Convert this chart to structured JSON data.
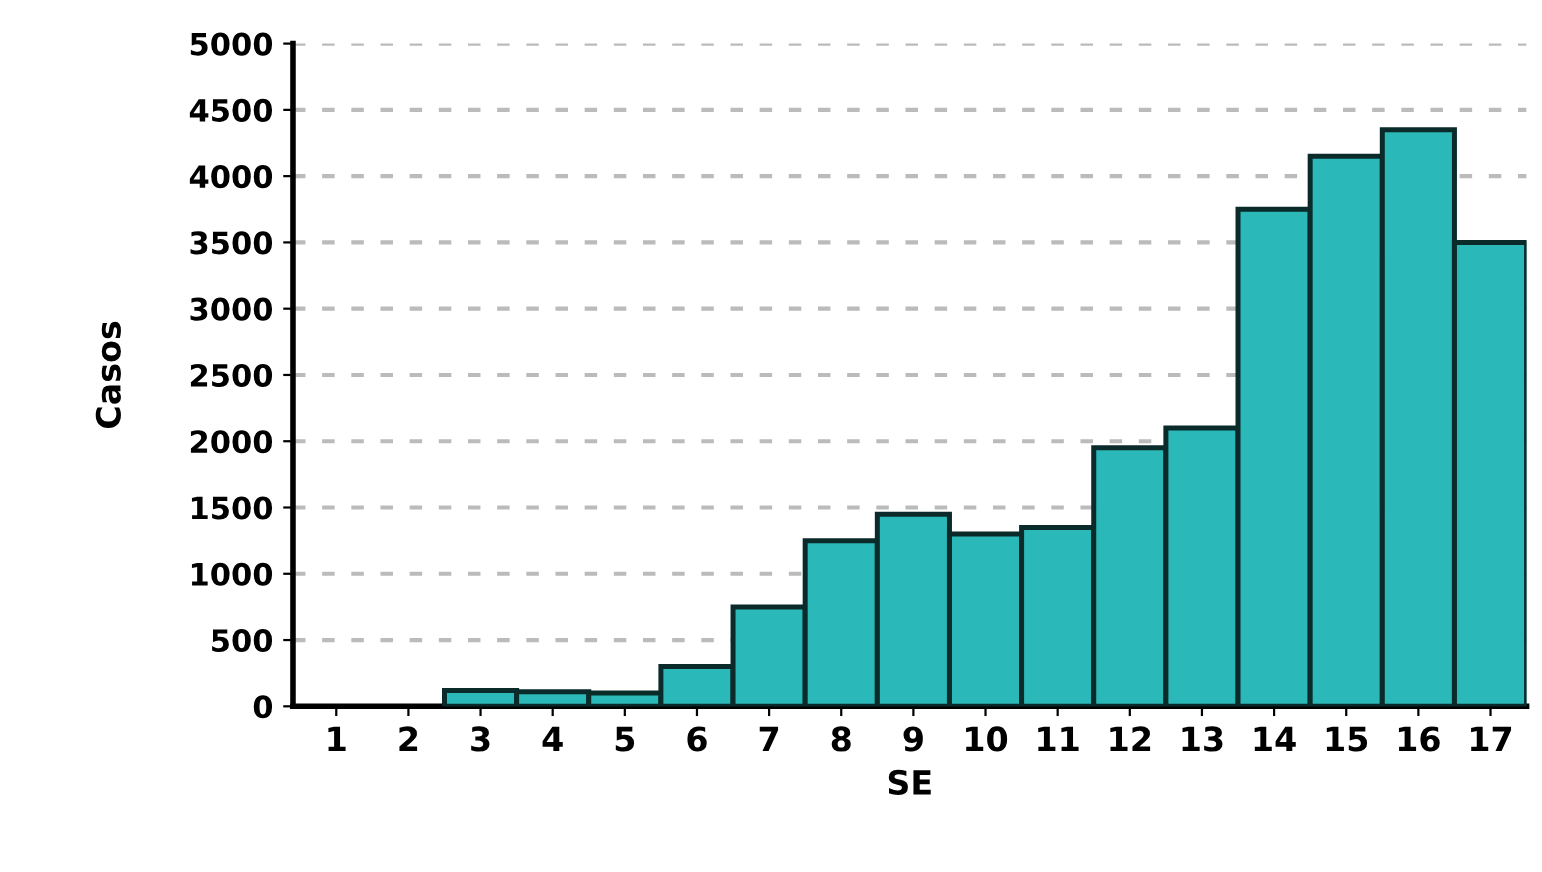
{
  "chart_data": {
    "type": "bar",
    "xlabel": "SE",
    "ylabel": "Casos",
    "categories": [
      "1",
      "2",
      "3",
      "4",
      "5",
      "6",
      "7",
      "8",
      "9",
      "10",
      "11",
      "12",
      "13",
      "14",
      "15",
      "16",
      "17"
    ],
    "values": [
      0,
      0,
      120,
      110,
      100,
      300,
      750,
      1250,
      1450,
      1300,
      1350,
      1950,
      2100,
      3750,
      4150,
      4350,
      3500
    ],
    "color": "#2bb8b8",
    "ylim": [
      0,
      5000
    ],
    "yticks": [
      0,
      500,
      1000,
      1500,
      2000,
      2500,
      3000,
      3500,
      4000,
      4500,
      5000
    ],
    "grid": "y"
  }
}
